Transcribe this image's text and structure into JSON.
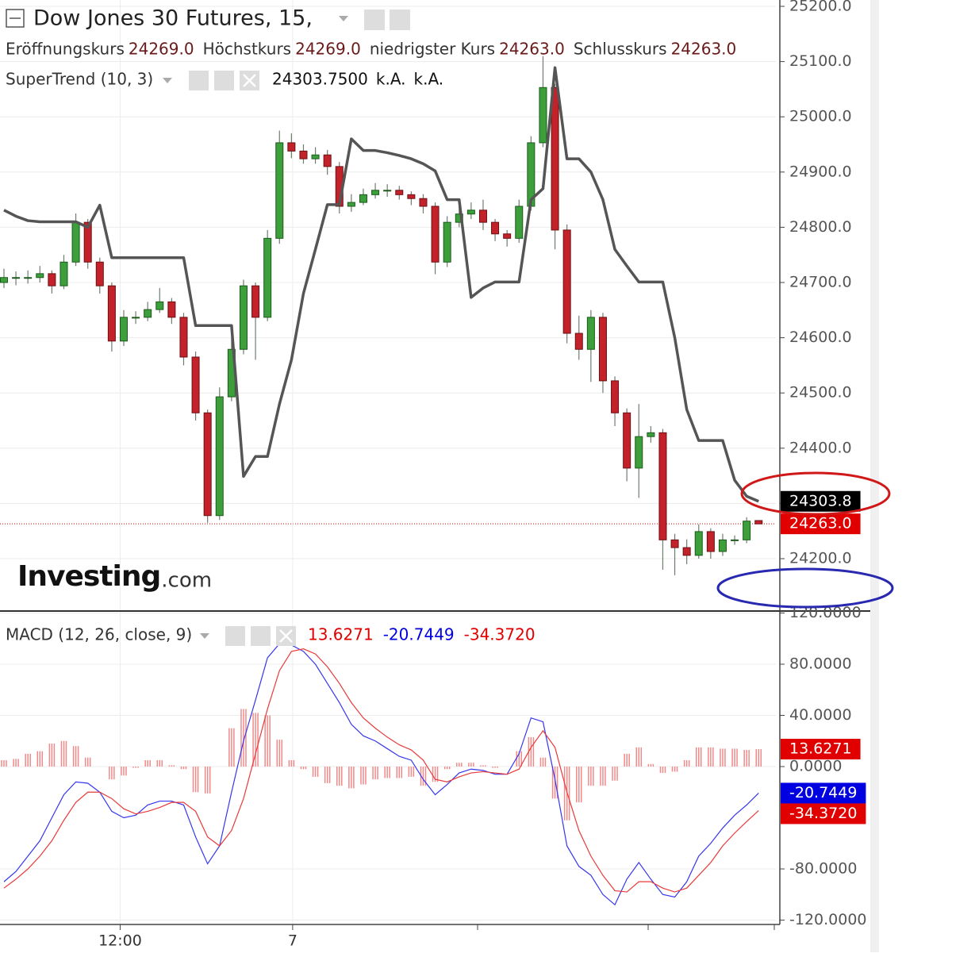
{
  "chart_data": [
    {
      "type": "candlestick",
      "title": "Dow Jones 30 Futures, 15,",
      "ohlc_legend": [
        {
          "label": "Eröffnungskurs",
          "value": "24269.0"
        },
        {
          "label": "Höchstkurs",
          "value": "24269.0"
        },
        {
          "label": "niedrigster Kurs",
          "value": "24263.0"
        },
        {
          "label": "Schlusskurs",
          "value": "24263.0"
        }
      ],
      "open": [
        24700,
        24709,
        24709,
        24709,
        24716,
        24694,
        24737,
        24809,
        24737,
        24694,
        24594,
        24637,
        24637,
        24651,
        24665,
        24637,
        24565,
        24464,
        24278,
        24493,
        24579,
        24694,
        24637,
        24780,
        24953,
        24938,
        24924,
        24931,
        24910,
        24838,
        24845,
        24859,
        24867,
        24867,
        24859,
        24852,
        24838,
        24737,
        24809,
        24824,
        24831,
        24809,
        24788,
        24780,
        24838,
        24953,
        25053,
        24795,
        24608,
        24579,
        24637,
        24522,
        24464,
        24364,
        24421,
        24428,
        24234,
        24220,
        24206,
        24249,
        24213,
        24234,
        24234,
        24269
      ],
      "high": [
        24725,
        24720,
        24722,
        24730,
        24722,
        24750,
        24825,
        24815,
        24745,
        24700,
        24650,
        24648,
        24665,
        24690,
        24672,
        24645,
        24575,
        24470,
        24510,
        24600,
        24705,
        24700,
        24795,
        24975,
        24970,
        24950,
        24945,
        24940,
        24918,
        24860,
        24870,
        24880,
        24878,
        24875,
        24865,
        24860,
        24845,
        24820,
        24840,
        24845,
        24850,
        24815,
        24795,
        24850,
        24965,
        25110,
        25060,
        24805,
        24640,
        24650,
        24645,
        24530,
        24472,
        24480,
        24440,
        24435,
        24245,
        24235,
        24262,
        24255,
        24245,
        24242,
        24275,
        24269
      ],
      "low": [
        24690,
        24695,
        24698,
        24700,
        24680,
        24688,
        24730,
        24725,
        24680,
        24575,
        24585,
        24625,
        24630,
        24645,
        24625,
        24550,
        24450,
        24265,
        24270,
        24485,
        24570,
        24560,
        24630,
        24770,
        24925,
        24915,
        24915,
        24895,
        24825,
        24828,
        24840,
        24852,
        24855,
        24850,
        24840,
        24825,
        24715,
        24728,
        24800,
        24815,
        24795,
        24775,
        24765,
        24772,
        24830,
        24945,
        24760,
        24590,
        24560,
        24520,
        24500,
        24440,
        24340,
        24310,
        24410,
        24180,
        24170,
        24190,
        24200,
        24200,
        24205,
        24225,
        24228,
        24263
      ],
      "close": [
        24709,
        24709,
        24709,
        24716,
        24694,
        24737,
        24809,
        24737,
        24694,
        24594,
        24637,
        24637,
        24651,
        24665,
        24637,
        24565,
        24464,
        24278,
        24493,
        24579,
        24694,
        24637,
        24780,
        24953,
        24938,
        24924,
        24931,
        24910,
        24838,
        24845,
        24859,
        24867,
        24867,
        24859,
        24852,
        24838,
        24737,
        24809,
        24824,
        24831,
        24809,
        24788,
        24780,
        24838,
        24953,
        25053,
        24795,
        24608,
        24579,
        24637,
        24522,
        24464,
        24364,
        24421,
        24428,
        24234,
        24220,
        24206,
        24249,
        24213,
        24234,
        24234,
        24268,
        24263
      ],
      "colors": {
        "up": "#3c9f3c",
        "up_edge": "#1c5a1c",
        "down": "#c4222a",
        "down_edge": "#6a1014",
        "wick": "#6f7d6f"
      },
      "series": [
        {
          "name": "SuperTrend (10, 3)",
          "color": "#555555",
          "legend_values": [
            "24303.7500",
            "k.A.",
            "k.A."
          ],
          "values": [
            24831,
            24820,
            24812,
            24810,
            24810,
            24810,
            24810,
            24800,
            24840,
            24745,
            24745,
            24745,
            24745,
            24745,
            24745,
            24745,
            24622,
            24622,
            24622,
            24622,
            24349,
            24385,
            24385,
            24480,
            24560,
            24680,
            24760,
            24841,
            24841,
            24960,
            24939,
            24939,
            24935,
            24930,
            24924,
            24915,
            24902,
            24850,
            24850,
            24673,
            24690,
            24701,
            24701,
            24701,
            24850,
            24870,
            25089,
            24924,
            24924,
            24900,
            24850,
            24760,
            24730,
            24701,
            24701,
            24701,
            24600,
            24470,
            24414,
            24414,
            24414,
            24342,
            24313,
            24303.8
          ]
        }
      ],
      "price_labels": [
        {
          "value": 24303.8,
          "label": "24303.8",
          "color": "#000000"
        },
        {
          "value": 24263,
          "label": "24263.0",
          "color": "#e00000",
          "line": true
        }
      ],
      "watermark": [
        "Investing",
        ".com"
      ],
      "xlim": [
        -0.33,
        64.44
      ],
      "ylim": [
        24105.2,
        25211.5
      ],
      "yticks": [
        {
          "value": 24200,
          "label": "24200.0"
        },
        {
          "value": 24300,
          "label": "24300.0"
        },
        {
          "value": 24400,
          "label": "24400.0"
        },
        {
          "value": 24500,
          "label": "24500.0"
        },
        {
          "value": 24600,
          "label": "24600.0"
        },
        {
          "value": 24700,
          "label": "24700.0"
        },
        {
          "value": 24800,
          "label": "24800.0"
        },
        {
          "value": 24900,
          "label": "24900.0"
        },
        {
          "value": 25000,
          "label": "25000.0"
        },
        {
          "value": 25100,
          "label": "25100.0"
        },
        {
          "value": 25200,
          "label": "25200.0"
        }
      ],
      "grid": true
    },
    {
      "type": "macd",
      "title": "MACD (12, 26, close, 9)",
      "series": [
        {
          "name": "Histogramm",
          "color": "#f08a8a",
          "kind": "bar",
          "values": [
            5,
            6,
            10,
            12,
            18,
            20,
            16,
            7,
            0,
            -10,
            -7,
            -1,
            5,
            5,
            1,
            -2,
            -20,
            -21,
            0,
            30,
            45,
            42,
            40,
            21,
            5,
            -2,
            -8,
            -13,
            -15,
            -17,
            -14,
            -10,
            -9,
            -9,
            -8,
            -15,
            -12,
            -2,
            3,
            3,
            1,
            -1,
            0,
            12,
            23,
            7,
            -25,
            -42,
            -28,
            -15,
            -15,
            -11,
            10,
            15,
            2,
            -5,
            -4,
            5,
            15,
            15,
            14,
            14,
            13,
            13.6271
          ]
        },
        {
          "name": "MACD",
          "color": "#3636ee",
          "kind": "line",
          "values": [
            -90,
            -82,
            -70,
            -58,
            -40,
            -22,
            -12,
            -13,
            -20,
            -35,
            -40,
            -38,
            -30,
            -27,
            -27,
            -30,
            -55,
            -76,
            -62,
            -20,
            20,
            52,
            85,
            96,
            95,
            90,
            80,
            65,
            50,
            33,
            24,
            20,
            14,
            8,
            5,
            -10,
            -22,
            -14,
            -5,
            -2,
            -3,
            -6,
            -6,
            10,
            38,
            35,
            -10,
            -62,
            -78,
            -85,
            -100,
            -108,
            -88,
            -75,
            -88,
            -100,
            -102,
            -90,
            -70,
            -60,
            -48,
            -38,
            -30,
            -20.7449
          ]
        },
        {
          "name": "Signal",
          "color": "#e83a3a",
          "kind": "line",
          "values": [
            -95,
            -88,
            -80,
            -70,
            -58,
            -42,
            -28,
            -20,
            -20,
            -25,
            -33,
            -37,
            -35,
            -32,
            -28,
            -28,
            -35,
            -55,
            -62,
            -50,
            -25,
            10,
            45,
            75,
            90,
            92,
            88,
            78,
            65,
            50,
            38,
            30,
            23,
            17,
            13,
            5,
            -10,
            -12,
            -8,
            -5,
            -4,
            -5,
            -6,
            -2,
            15,
            28,
            15,
            -20,
            -50,
            -70,
            -85,
            -97,
            -98,
            -90,
            -90,
            -95,
            -98,
            -95,
            -85,
            -75,
            -62,
            -52,
            -43,
            -34.372
          ]
        }
      ],
      "price_labels": [
        {
          "value": 13.6271,
          "label": "13.6271",
          "color": "#e00000"
        },
        {
          "value": -20.7449,
          "label": "-20.7449",
          "color": "#0000e0"
        },
        {
          "value": -34.372,
          "label": "-34.3720",
          "color": "#e00000"
        }
      ],
      "xlim": [
        -0.33,
        64.44
      ],
      "ylim": [
        -123.4,
        121.55
      ],
      "yticks": [
        {
          "value": 120,
          "label": "120.0000"
        },
        {
          "value": 80,
          "label": "80.0000"
        },
        {
          "value": 40,
          "label": "40.0000"
        },
        {
          "value": 0,
          "label": "0.0000"
        },
        {
          "value": -80,
          "label": "-80.0000"
        },
        {
          "value": -120,
          "label": "-120.0000"
        }
      ],
      "xticks": [
        {
          "value": 9.7,
          "label": "12:00"
        },
        {
          "value": 24.1,
          "label": "7"
        }
      ],
      "grid": true
    }
  ]
}
